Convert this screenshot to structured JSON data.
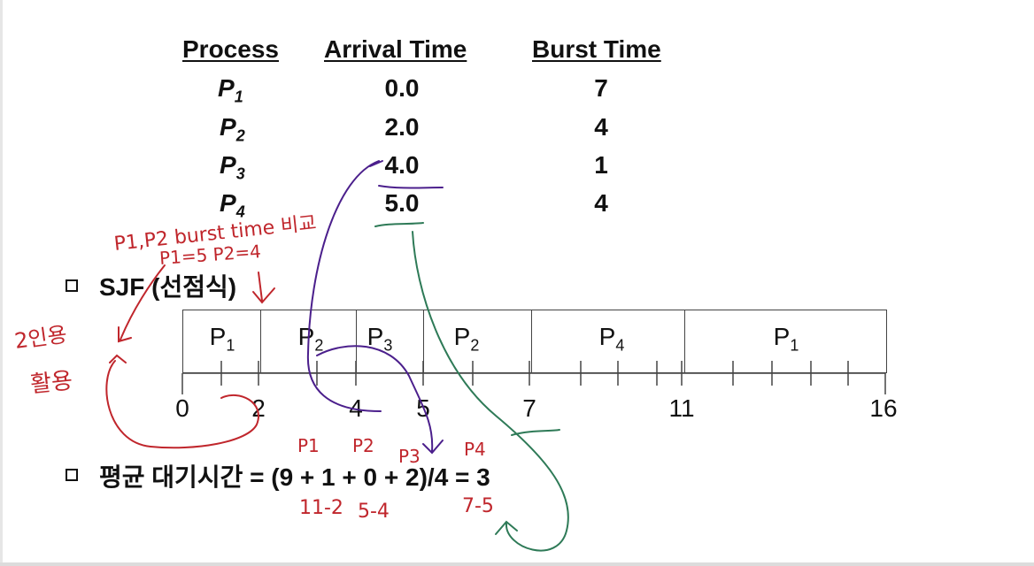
{
  "table": {
    "headers": {
      "process": "Process",
      "arrival": "Arrival Time",
      "burst": "Burst Time"
    },
    "rows": [
      {
        "p": "P",
        "sub": "1",
        "arrival": "0.0",
        "burst": "7"
      },
      {
        "p": "P",
        "sub": "2",
        "arrival": "2.0",
        "burst": "4"
      },
      {
        "p": "P",
        "sub": "3",
        "arrival": "4.0",
        "burst": "1"
      },
      {
        "p": "P",
        "sub": "4",
        "arrival": "5.0",
        "burst": "4"
      }
    ]
  },
  "sjf_title": "SJF (선점식)",
  "gantt": {
    "blocks": [
      {
        "p": "P",
        "sub": "1"
      },
      {
        "p": "P",
        "sub": "2"
      },
      {
        "p": "P",
        "sub": "3"
      },
      {
        "p": "P",
        "sub": "2"
      },
      {
        "p": "P",
        "sub": "4"
      },
      {
        "p": "P",
        "sub": "1"
      }
    ],
    "times": [
      "0",
      "2",
      "4",
      "5",
      "7",
      "11",
      "16"
    ]
  },
  "avg_wait": "평균 대기시간 = (9 + 1 + 0 + 2)/4 = 3",
  "annotations": {
    "compare": "P1,P2 burst time 비교",
    "values": "P1=5  P2=4",
    "side": "2인용",
    "side2": "활용",
    "p1": "P1",
    "p2": "P2",
    "p3": "P3",
    "p4": "P4",
    "calc1": "11-2",
    "calc2": "5-4",
    "calc4": "7-5"
  },
  "colors": {
    "red_ink": "#c0262c",
    "purple_ink": "#4b1f8c",
    "green_ink": "#2e7a57"
  }
}
